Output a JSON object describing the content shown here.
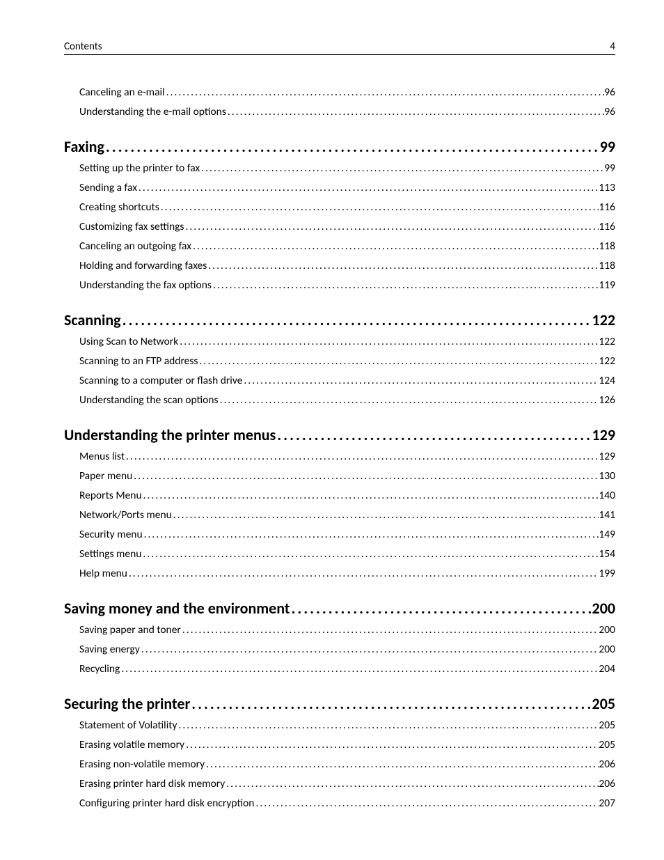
{
  "header": {
    "left": "Contents",
    "page_number": "4"
  },
  "orphan_subs": [
    {
      "title": "Canceling an e-mail",
      "page": "96"
    },
    {
      "title": "Understanding the e-mail options",
      "page": "96"
    }
  ],
  "sections": [
    {
      "title": "Faxing",
      "page": "99",
      "subs": [
        {
          "title": "Setting up the printer to fax",
          "page": "99"
        },
        {
          "title": "Sending a fax",
          "page": "113"
        },
        {
          "title": "Creating shortcuts",
          "page": "116"
        },
        {
          "title": "Customizing fax settings",
          "page": "116"
        },
        {
          "title": "Canceling an outgoing fax",
          "page": "118"
        },
        {
          "title": "Holding and forwarding faxes",
          "page": "118"
        },
        {
          "title": "Understanding the fax options",
          "page": "119"
        }
      ]
    },
    {
      "title": "Scanning",
      "page": "122",
      "subs": [
        {
          "title": "Using Scan to Network",
          "page": "122"
        },
        {
          "title": "Scanning to an FTP address",
          "page": "122"
        },
        {
          "title": "Scanning to a computer or flash drive",
          "page": "124"
        },
        {
          "title": "Understanding the scan options",
          "page": "126"
        }
      ]
    },
    {
      "title": "Understanding the printer menus",
      "page": "129",
      "subs": [
        {
          "title": "Menus list",
          "page": "129"
        },
        {
          "title": "Paper menu",
          "page": "130"
        },
        {
          "title": "Reports Menu",
          "page": "140"
        },
        {
          "title": "Network/Ports menu",
          "page": "141"
        },
        {
          "title": "Security menu",
          "page": "149"
        },
        {
          "title": "Settings menu",
          "page": "154"
        },
        {
          "title": "Help menu",
          "page": "199"
        }
      ]
    },
    {
      "title": "Saving money and the environment",
      "page": "200",
      "subs": [
        {
          "title": "Saving paper and toner",
          "page": "200"
        },
        {
          "title": "Saving energy",
          "page": "200"
        },
        {
          "title": "Recycling",
          "page": "204"
        }
      ]
    },
    {
      "title": "Securing the printer",
      "page": "205",
      "subs": [
        {
          "title": "Statement of Volatility",
          "page": "205"
        },
        {
          "title": "Erasing volatile memory",
          "page": "205"
        },
        {
          "title": "Erasing non-volatile memory",
          "page": "206"
        },
        {
          "title": "Erasing printer hard disk memory",
          "page": "206"
        },
        {
          "title": "Configuring printer hard disk encryption",
          "page": "207"
        }
      ]
    }
  ]
}
